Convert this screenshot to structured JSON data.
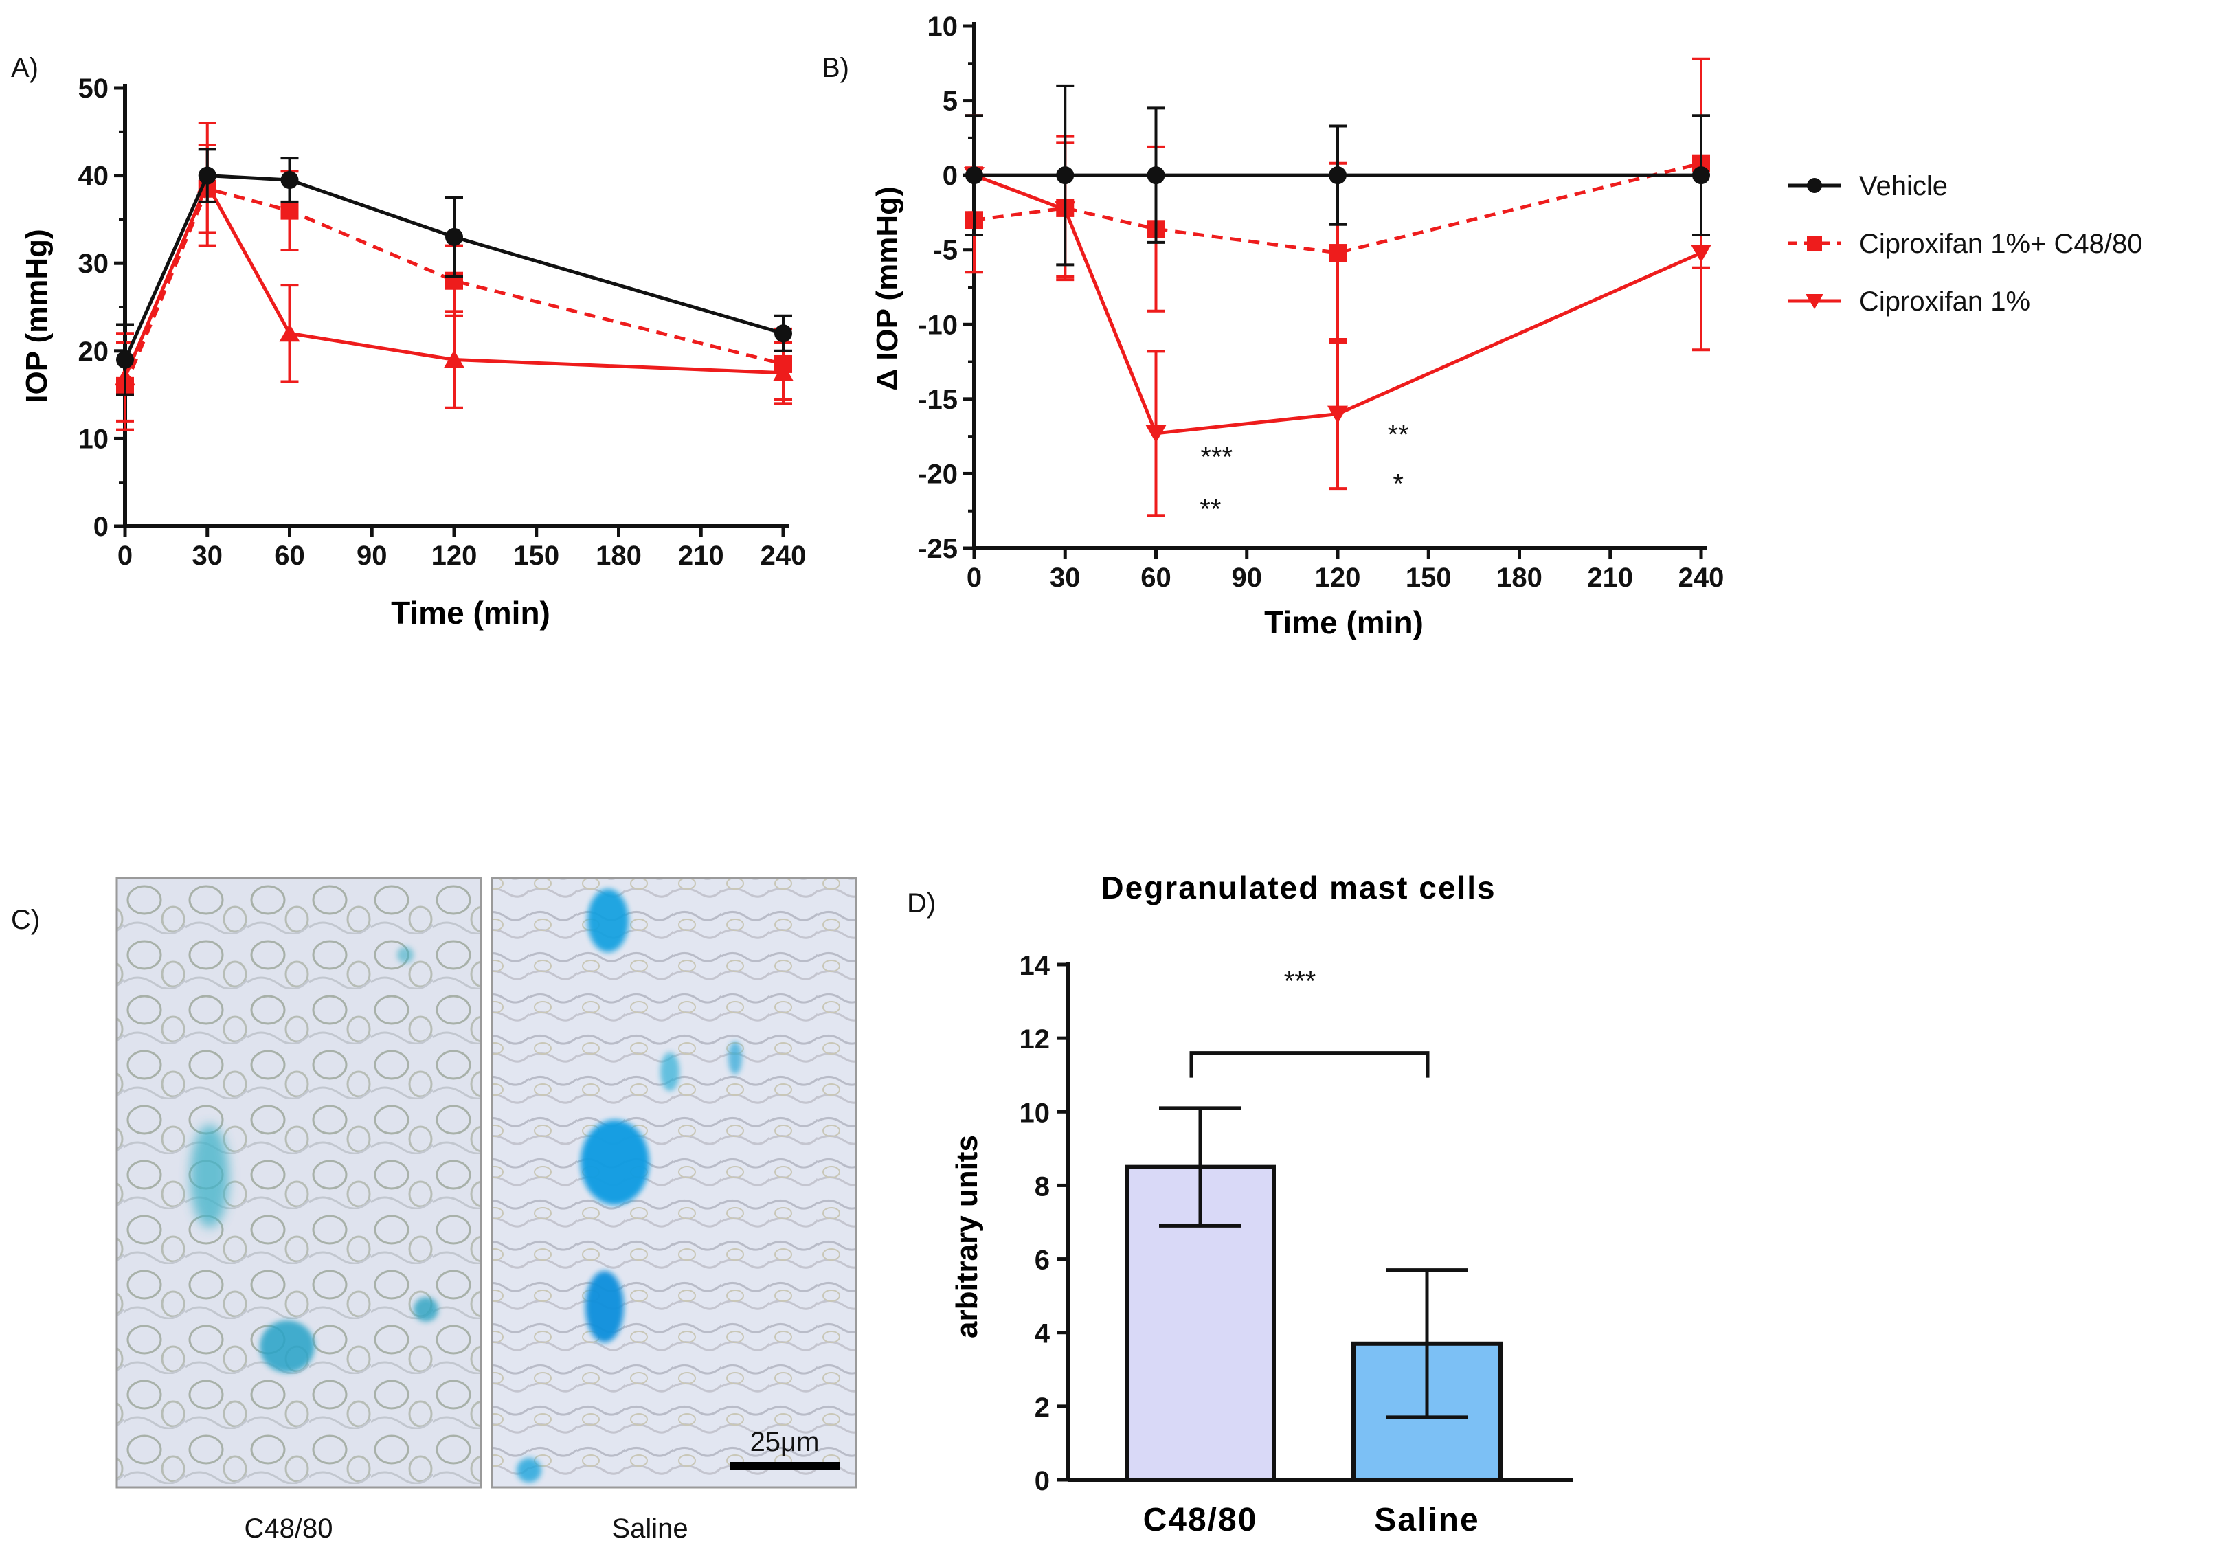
{
  "panel_labels": {
    "a": "A)",
    "b": "B)",
    "c": "C)",
    "d": "D)"
  },
  "colors": {
    "vehicle": "#111111",
    "cipro_c48": "#ee1c1c",
    "cipro": "#ee1c1c",
    "bar_c48": "#d9d9f7",
    "bar_saline": "#7cc0f5"
  },
  "chart_data": [
    {
      "id": "A",
      "type": "line",
      "title": "",
      "xlabel": "Time (min)",
      "ylabel": "IOP (mmHg)",
      "xlim": [
        0,
        240
      ],
      "ylim": [
        0,
        50
      ],
      "xticks": [
        "0",
        "30",
        "60",
        "90",
        "120",
        "150",
        "180",
        "210",
        "240"
      ],
      "yticks": [
        "0",
        "10",
        "20",
        "30",
        "40",
        "50"
      ],
      "x": [
        0,
        30,
        60,
        120,
        240
      ],
      "series": [
        {
          "name": "Vehicle",
          "values": [
            19,
            40,
            39.5,
            33,
            22
          ],
          "err": [
            4,
            3,
            2.5,
            4.5,
            2
          ],
          "style": "solid",
          "marker": "circle",
          "color": "#111111"
        },
        {
          "name": "Ciproxifan 1%+ C48/80",
          "values": [
            16,
            38.5,
            36,
            28,
            18.5
          ],
          "err": [
            5,
            5,
            4.5,
            4,
            4
          ],
          "style": "dashed",
          "marker": "square",
          "color": "#ee1c1c"
        },
        {
          "name": "Ciproxifan 1%",
          "values": [
            17,
            39,
            22,
            19,
            17.5
          ],
          "err": [
            5,
            7,
            5.5,
            5.5,
            3.5
          ],
          "style": "solid",
          "marker": "triangle-up",
          "color": "#ee1c1c"
        }
      ]
    },
    {
      "id": "B",
      "type": "line",
      "title": "",
      "xlabel": "Time (min)",
      "ylabel": "Δ IOP (mmHg)",
      "xlim": [
        0,
        240
      ],
      "ylim": [
        -25,
        10
      ],
      "xticks": [
        "0",
        "30",
        "60",
        "90",
        "120",
        "150",
        "180",
        "210",
        "240"
      ],
      "yticks": [
        "10",
        "5",
        "0",
        "-5",
        "-10",
        "-15",
        "-20",
        "-25"
      ],
      "x": [
        0,
        30,
        60,
        120,
        240
      ],
      "series": [
        {
          "name": "Vehicle",
          "values": [
            0,
            0,
            0,
            0,
            0
          ],
          "err": [
            4,
            6,
            4.5,
            3.3,
            4
          ],
          "style": "solid",
          "marker": "circle",
          "color": "#111111"
        },
        {
          "name": "Ciproxifan 1%+ C48/80",
          "values": [
            -3,
            -2.2,
            -3.6,
            -5.2,
            0.8
          ],
          "err": [
            3.5,
            4.8,
            5.5,
            6,
            7
          ],
          "style": "dashed",
          "marker": "square",
          "color": "#ee1c1c"
        },
        {
          "name": "Ciproxifan 1%",
          "values": [
            0,
            -2.3,
            -17.3,
            -16,
            -5.2
          ],
          "err": [
            4,
            4.5,
            5.5,
            5,
            6.5
          ],
          "style": "solid",
          "marker": "triangle-down",
          "color": "#ee1c1c"
        }
      ],
      "annotations": [
        {
          "text": "***",
          "x": 80,
          "y": -19.5
        },
        {
          "text": "**",
          "x": 78,
          "y": -23
        },
        {
          "text": "**",
          "x": 140,
          "y": -18
        },
        {
          "text": "*",
          "x": 140,
          "y": -21.3
        }
      ],
      "legend": [
        "Vehicle",
        "Ciproxifan 1%+ C48/80",
        "Ciproxifan 1%"
      ]
    },
    {
      "id": "D",
      "type": "bar",
      "title": "Degranulated mast cells",
      "xlabel": "",
      "ylabel": "arbitrary units",
      "categories": [
        "C48/80",
        "Saline"
      ],
      "values": [
        8.5,
        3.7
      ],
      "err": [
        1.6,
        2.0
      ],
      "ylim": [
        0,
        14
      ],
      "yticks": [
        "0",
        "2",
        "4",
        "6",
        "8",
        "10",
        "12",
        "14"
      ],
      "significance": "***"
    }
  ],
  "micrographs": {
    "left_caption": "C48/80",
    "right_caption": "Saline",
    "scale_bar_label": "25μm"
  }
}
